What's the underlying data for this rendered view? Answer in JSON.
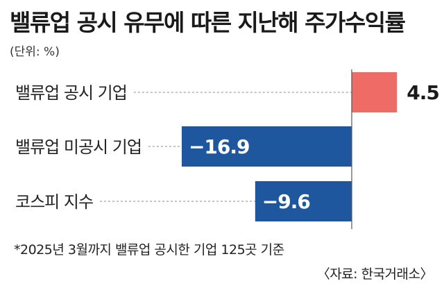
{
  "title": "밸류업 공시 유무에 따른 지난해 주가수익률",
  "unit": "(단위: %)",
  "footnote": "*2025년 3월까지 밸류업 공시한 기업 125곳 기준",
  "source": "〈자료: 한국거래소〉",
  "colors": {
    "positive": "#ee6b66",
    "negative": "#1f579e",
    "axis": "#555555",
    "guide": "#888888"
  },
  "chart_data": {
    "type": "bar",
    "orientation": "horizontal",
    "categories": [
      "밸류업 공시 기업",
      "밸류업 미공시 기업",
      "코스피 지수"
    ],
    "values": [
      4.5,
      -16.9,
      -9.6
    ],
    "value_labels": [
      "4.5",
      "−16.9",
      "−9.6"
    ],
    "title": "밸류업 공시 유무에 따른 지난해 주가수익률",
    "xlabel": "",
    "ylabel": "",
    "xlim": [
      -17.5,
      4.5
    ],
    "grid": false
  }
}
